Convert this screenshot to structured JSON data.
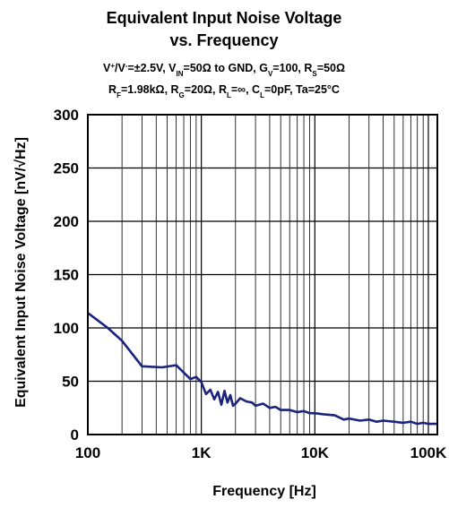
{
  "chart_data": {
    "type": "line",
    "title_line1": "Equivalent Input Noise Voltage",
    "title_line2": "vs. Frequency",
    "conditions_line1": "V+/V-=±2.5V, VIN=50Ω to GND, GV=100, RS=50Ω",
    "conditions_line2": "RF=1.98kΩ, RG=20Ω, RL=∞, CL=0pF, Ta=25°C",
    "xlabel": "Frequency [Hz]",
    "ylabel": "Equivalent Input Noise Voltage [nV/√Hz]",
    "x_scale": "log",
    "xlim": [
      100,
      120000
    ],
    "ylim": [
      0,
      300
    ],
    "x_ticks": [
      100,
      1000,
      10000,
      100000
    ],
    "x_tick_labels": [
      "100",
      "1K",
      "10K",
      "100K"
    ],
    "y_ticks": [
      0,
      50,
      100,
      150,
      200,
      250,
      300
    ],
    "y_tick_labels": [
      "0",
      "50",
      "100",
      "150",
      "200",
      "250",
      "300"
    ],
    "grid": true,
    "line_color": "#1a237e",
    "series": [
      {
        "x": [
          100,
          150,
          200,
          300,
          450,
          600,
          800,
          900,
          1000,
          1100,
          1200,
          1300,
          1400,
          1500,
          1600,
          1700,
          1800,
          1900,
          2000,
          2200,
          2500,
          2800,
          3000,
          3500,
          4000,
          4500,
          5000,
          6000,
          7000,
          8000,
          9000,
          10000,
          12000,
          15000,
          18000,
          20000,
          25000,
          30000,
          35000,
          40000,
          50000,
          60000,
          70000,
          80000,
          90000,
          100000,
          120000
        ],
        "y": [
          114,
          100,
          88,
          64,
          63,
          65,
          52,
          54,
          49,
          38,
          42,
          33,
          40,
          28,
          41,
          30,
          37,
          27,
          29,
          34,
          31,
          30,
          27,
          29,
          25,
          26,
          23,
          23,
          21,
          22,
          20,
          20,
          19,
          18,
          14,
          15,
          13,
          14,
          12,
          13,
          12,
          11,
          12,
          10,
          11,
          10,
          10
        ]
      }
    ]
  }
}
